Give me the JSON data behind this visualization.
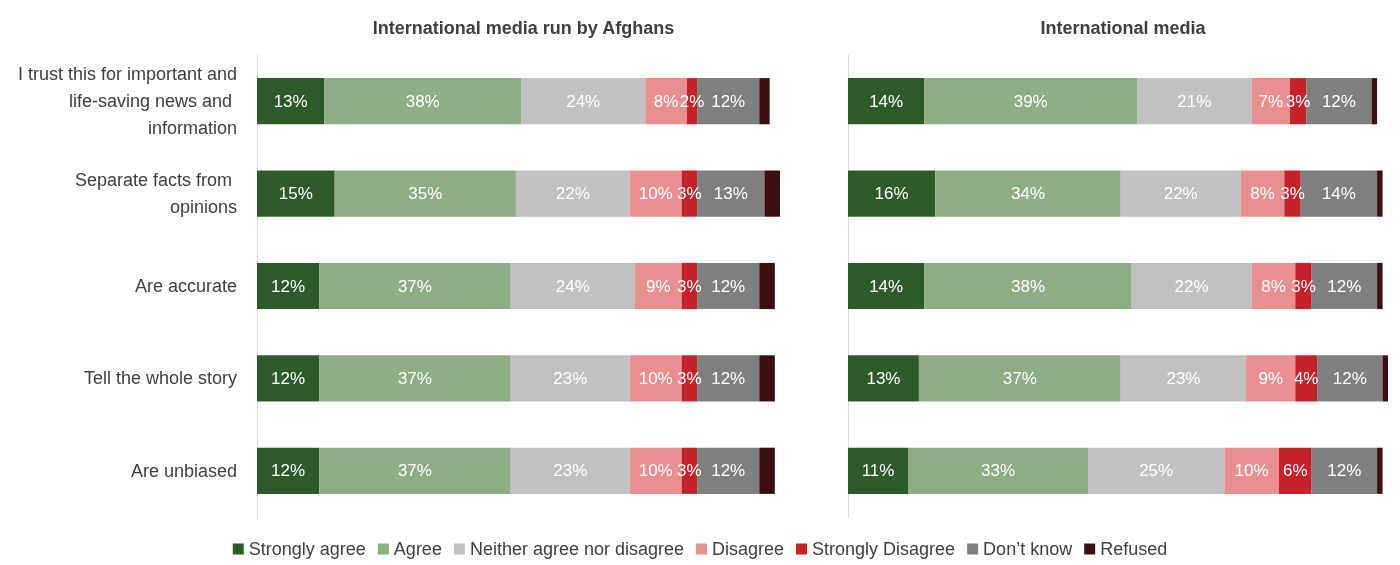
{
  "chart_data": [
    {
      "type": "bar",
      "orientation": "horizontal",
      "stacked": true,
      "title": "International media run by Afghans",
      "legend": "bottom",
      "tick_labels": "y",
      "categories": [
        "I trust this for important and life-saving news and information",
        "Separate facts from opinions",
        "Are accurate",
        "Tell the whole story",
        "Are unbiased"
      ],
      "series": [
        {
          "name": "Strongly agree",
          "color": "#2e5b2a",
          "values": [
            13,
            15,
            12,
            12,
            12
          ],
          "value_labels": [
            "13%",
            "15%",
            "12%",
            "12%",
            "12%"
          ]
        },
        {
          "name": "Agree",
          "color": "#8fad85",
          "values": [
            38,
            35,
            37,
            37,
            37
          ],
          "value_labels": [
            "38%",
            "35%",
            "37%",
            "37%",
            "37%"
          ]
        },
        {
          "name": "Neither agree nor disagree",
          "color": "#c2c1c1",
          "values": [
            24,
            22,
            24,
            23,
            23
          ],
          "value_labels": [
            "24%",
            "22%",
            "24%",
            "23%",
            "23%"
          ]
        },
        {
          "name": "Disagree",
          "color": "#e8908f",
          "values": [
            8,
            10,
            9,
            10,
            10
          ],
          "value_labels": [
            "8%",
            "10%",
            "9%",
            "10%",
            "10%"
          ]
        },
        {
          "name": "Strongly Disagree",
          "color": "#c62229",
          "values": [
            2,
            3,
            3,
            3,
            3
          ],
          "value_labels": [
            "2%",
            "3%",
            "3%",
            "3%",
            "3%"
          ]
        },
        {
          "name": "Don’t know",
          "color": "#7f7f7f",
          "values": [
            12,
            13,
            12,
            12,
            12
          ],
          "value_labels": [
            "12%",
            "13%",
            "12%",
            "12%",
            "12%"
          ]
        },
        {
          "name": "Refused",
          "color": "#3b1012",
          "values": [
            2,
            3,
            3,
            3,
            3
          ]
        }
      ]
    },
    {
      "type": "bar",
      "orientation": "horizontal",
      "stacked": true,
      "title": "International media",
      "tick_labels": false,
      "categories": [
        "I trust this for important and life-saving news and information",
        "Separate facts from opinions",
        "Are accurate",
        "Tell the whole story",
        "Are unbiased"
      ],
      "series": [
        {
          "color": "#2e5b2a",
          "values": [
            14,
            16,
            14,
            13,
            11
          ],
          "value_labels": [
            "14%",
            "16%",
            "14%",
            "13%",
            "11%"
          ]
        },
        {
          "color": "#8fad85",
          "values": [
            39,
            34,
            38,
            37,
            33
          ],
          "value_labels": [
            "39%",
            "34%",
            "38%",
            "37%",
            "33%"
          ]
        },
        {
          "color": "#c2c1c1",
          "values": [
            21,
            22,
            22,
            23,
            25
          ],
          "value_labels": [
            "21%",
            "22%",
            "22%",
            "23%",
            "25%"
          ]
        },
        {
          "color": "#e8908f",
          "values": [
            7,
            8,
            8,
            9,
            10
          ],
          "value_labels": [
            "7%",
            "8%",
            "8%",
            "9%",
            "10%"
          ]
        },
        {
          "color": "#c62229",
          "values": [
            3,
            3,
            3,
            4,
            6
          ],
          "value_labels": [
            "3%",
            "3%",
            "3%",
            "4%",
            "6%"
          ]
        },
        {
          "color": "#7f7f7f",
          "values": [
            12,
            14,
            12,
            12,
            12
          ],
          "value_labels": [
            "12%",
            "14%",
            "12%",
            "12%",
            "12%"
          ]
        },
        {
          "color": "#3b1012",
          "values": [
            1,
            1,
            1,
            1,
            1
          ]
        }
      ]
    }
  ]
}
